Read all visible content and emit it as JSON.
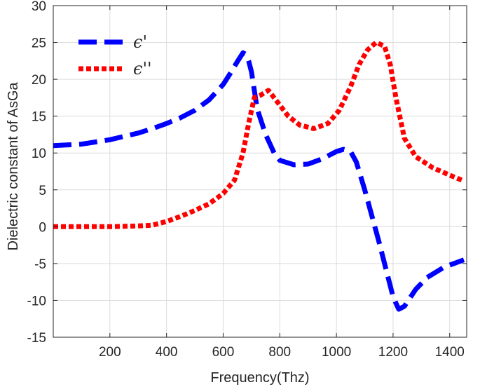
{
  "chart_data": {
    "type": "line",
    "xlabel": "Frequency(Thz)",
    "ylabel": "Dielectric constant of AsGa",
    "xlim": [
      0,
      1460
    ],
    "ylim": [
      -15,
      30
    ],
    "xticks": [
      200,
      400,
      600,
      800,
      1000,
      1200,
      1400
    ],
    "yticks": [
      -15,
      -10,
      -5,
      0,
      5,
      10,
      15,
      20,
      25,
      30
    ],
    "grid": true,
    "legend_position": "top-left",
    "series": [
      {
        "name": "ϵ'",
        "color": "#0000ff",
        "style": "dashed",
        "x": [
          0,
          100,
          200,
          300,
          350,
          400,
          450,
          500,
          550,
          600,
          625,
          650,
          670,
          680,
          690,
          700,
          720,
          750,
          780,
          800,
          850,
          900,
          950,
          1000,
          1025,
          1050,
          1070,
          1100,
          1150,
          1200,
          1220,
          1240,
          1280,
          1320,
          1380,
          1450
        ],
        "y": [
          11.0,
          11.2,
          11.8,
          12.7,
          13.3,
          14.0,
          14.8,
          15.8,
          17.2,
          19.3,
          20.8,
          22.4,
          23.6,
          23.4,
          22.5,
          21.0,
          16.0,
          12.5,
          10.0,
          9.0,
          8.4,
          8.5,
          9.2,
          10.2,
          10.5,
          10.2,
          8.8,
          5.0,
          -2.0,
          -9.5,
          -11.2,
          -10.8,
          -8.5,
          -6.9,
          -5.5,
          -4.5
        ]
      },
      {
        "name": "ϵ''",
        "color": "#ff0000",
        "style": "dotted",
        "x": [
          0,
          100,
          200,
          300,
          350,
          400,
          450,
          500,
          550,
          600,
          640,
          670,
          690,
          710,
          730,
          760,
          790,
          830,
          870,
          920,
          970,
          1010,
          1050,
          1080,
          1110,
          1140,
          1170,
          1190,
          1210,
          1240,
          1280,
          1340,
          1400,
          1450
        ],
        "y": [
          0,
          0,
          0,
          0.1,
          0.2,
          0.7,
          1.4,
          2.2,
          3.1,
          4.5,
          6.3,
          10.0,
          14.0,
          17.5,
          17.8,
          18.5,
          17.0,
          15.0,
          13.8,
          13.3,
          14.0,
          15.8,
          19.0,
          22.0,
          24.0,
          25.0,
          24.5,
          22.0,
          17.5,
          12.0,
          9.5,
          8.0,
          7.0,
          6.2
        ]
      }
    ]
  }
}
